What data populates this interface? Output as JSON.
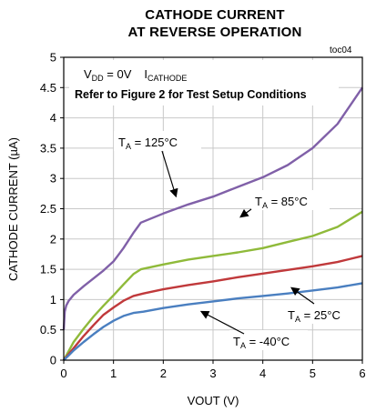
{
  "chart_data": {
    "type": "line",
    "title": [
      "CATHODE CURRENT",
      "AT REVERSE OPERATION"
    ],
    "tag": "toc04",
    "xlabel": "VOUT (V)",
    "ylabel": "CATHODE CURRENT  (µA)",
    "xlim": [
      0,
      6
    ],
    "ylim": [
      0,
      5
    ],
    "xticks": [
      0,
      1,
      2,
      3,
      4,
      5,
      6
    ],
    "yticks": [
      0,
      0.5,
      1,
      1.5,
      2,
      2.5,
      3,
      3.5,
      4,
      4.5,
      5
    ],
    "grid": true,
    "annotation_box": {
      "line1": {
        "vdd_main": "V",
        "vdd_sub": "DD",
        "vdd_rest": " = 0V",
        "i_main": "I",
        "i_sub": "CATHODE"
      },
      "line2": "Refer to Figure 2 for Test Setup Conditions"
    },
    "series": [
      {
        "name": "TA = 125°C",
        "label": {
          "main": "T",
          "sub": "A",
          "rest": " = 125°C"
        },
        "color": "#8060a8",
        "x": [
          0.0,
          0.02,
          0.05,
          0.1,
          0.2,
          0.4,
          0.6,
          0.8,
          1.0,
          1.2,
          1.4,
          1.55,
          2.0,
          2.5,
          3.0,
          3.5,
          4.0,
          4.5,
          5.0,
          5.5,
          6.0
        ],
        "y": [
          0.5,
          0.8,
          0.9,
          0.98,
          1.08,
          1.22,
          1.35,
          1.48,
          1.63,
          1.85,
          2.1,
          2.27,
          2.42,
          2.57,
          2.7,
          2.86,
          3.02,
          3.22,
          3.5,
          3.9,
          4.5
        ]
      },
      {
        "name": "TA = 85°C",
        "label": {
          "main": "T",
          "sub": "A",
          "rest": " = 85°C"
        },
        "color": "#8fba3a",
        "x": [
          0.0,
          0.1,
          0.2,
          0.4,
          0.6,
          0.8,
          1.0,
          1.2,
          1.4,
          1.55,
          2.0,
          2.5,
          3.0,
          3.5,
          4.0,
          4.5,
          5.0,
          5.5,
          6.0
        ],
        "y": [
          0.0,
          0.15,
          0.3,
          0.52,
          0.72,
          0.9,
          1.07,
          1.25,
          1.42,
          1.5,
          1.58,
          1.66,
          1.72,
          1.78,
          1.85,
          1.95,
          2.05,
          2.2,
          2.45
        ]
      },
      {
        "name": "TA = 25°C",
        "label": {
          "main": "T",
          "sub": "A",
          "rest": " = 25°C"
        },
        "color": "#c0393b",
        "x": [
          0.0,
          0.1,
          0.2,
          0.4,
          0.6,
          0.8,
          1.0,
          1.2,
          1.4,
          1.6,
          2.0,
          2.5,
          3.0,
          3.5,
          4.0,
          4.5,
          5.0,
          5.5,
          6.0
        ],
        "y": [
          0.0,
          0.1,
          0.2,
          0.4,
          0.58,
          0.75,
          0.87,
          0.98,
          1.06,
          1.1,
          1.17,
          1.24,
          1.3,
          1.37,
          1.43,
          1.49,
          1.55,
          1.62,
          1.72
        ]
      },
      {
        "name": "TA = -40°C",
        "label": {
          "main": "T",
          "sub": "A",
          "rest": " = -40°C"
        },
        "color": "#4a7fc0",
        "x": [
          0.0,
          0.1,
          0.2,
          0.4,
          0.6,
          0.8,
          1.0,
          1.2,
          1.4,
          1.6,
          2.0,
          2.5,
          3.0,
          3.5,
          4.0,
          4.5,
          5.0,
          5.5,
          6.0
        ],
        "y": [
          0.0,
          0.08,
          0.16,
          0.3,
          0.43,
          0.55,
          0.65,
          0.73,
          0.78,
          0.8,
          0.86,
          0.92,
          0.97,
          1.02,
          1.06,
          1.1,
          1.15,
          1.2,
          1.27
        ]
      }
    ]
  }
}
